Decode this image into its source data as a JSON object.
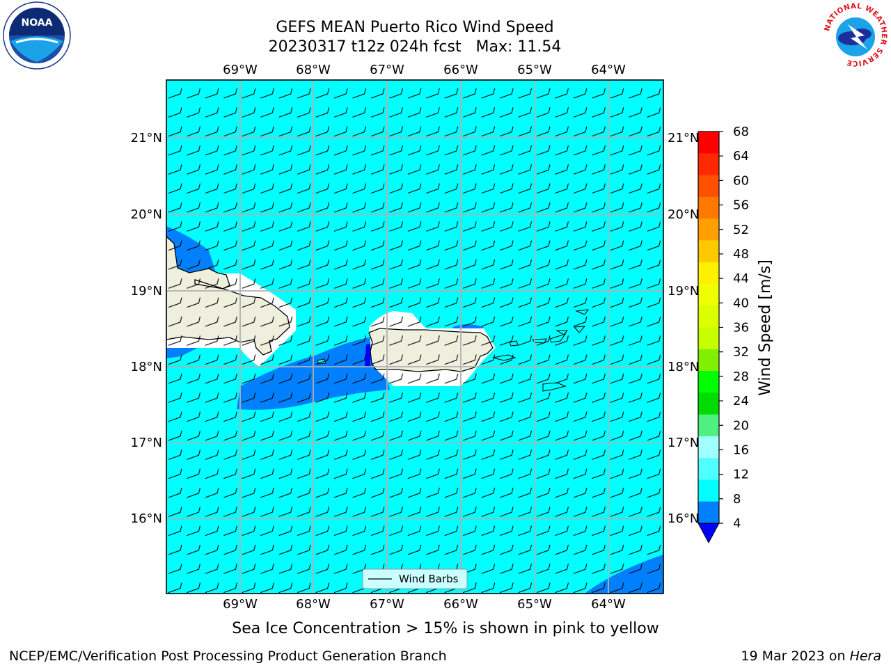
{
  "header": {
    "title_line1": "GEFS MEAN Puerto Rico Wind Speed",
    "title_line2": "20230317 t12z 024h fcst   Max: 11.54",
    "noaa_logo_text": "NOAA",
    "nws_logo_text": "NATIONAL WEATHER SERVICE"
  },
  "map": {
    "lon_labels": [
      "69°W",
      "68°W",
      "67°W",
      "66°W",
      "65°W",
      "64°W"
    ],
    "lat_labels": [
      "21°N",
      "20°N",
      "19°N",
      "18°N",
      "17°N",
      "16°N"
    ],
    "legend_label": "Wind Barbs",
    "colors": {
      "ocean": "#00ffff",
      "land": "#efefde",
      "slow_wind": "#0080ff",
      "very_slow": "#0000ff"
    }
  },
  "colorbar": {
    "label": "Wind Speed [m/s]",
    "ticks": [
      "68",
      "64",
      "60",
      "56",
      "52",
      "48",
      "44",
      "40",
      "36",
      "32",
      "28",
      "24",
      "20",
      "16",
      "12",
      "8",
      "4"
    ],
    "colors": [
      "#ff0000",
      "#ff2800",
      "#ff5000",
      "#ff7800",
      "#ffa000",
      "#ffc800",
      "#fff000",
      "#f0ff00",
      "#dcff00",
      "#c8ff00",
      "#80f000",
      "#00ff00",
      "#00dc00",
      "#50f080",
      "#a0ffff",
      "#50ffff",
      "#00ffff",
      "#0080ff"
    ],
    "extend_color": "#0000ff"
  },
  "subtitle": "Sea Ice Concentration > 15% is shown in pink to yellow",
  "footer": {
    "left": "NCEP/EMC/Verification Post Processing Product Generation Branch",
    "right_prefix": "19 Mar 2023 on ",
    "right_host": "Hera"
  }
}
